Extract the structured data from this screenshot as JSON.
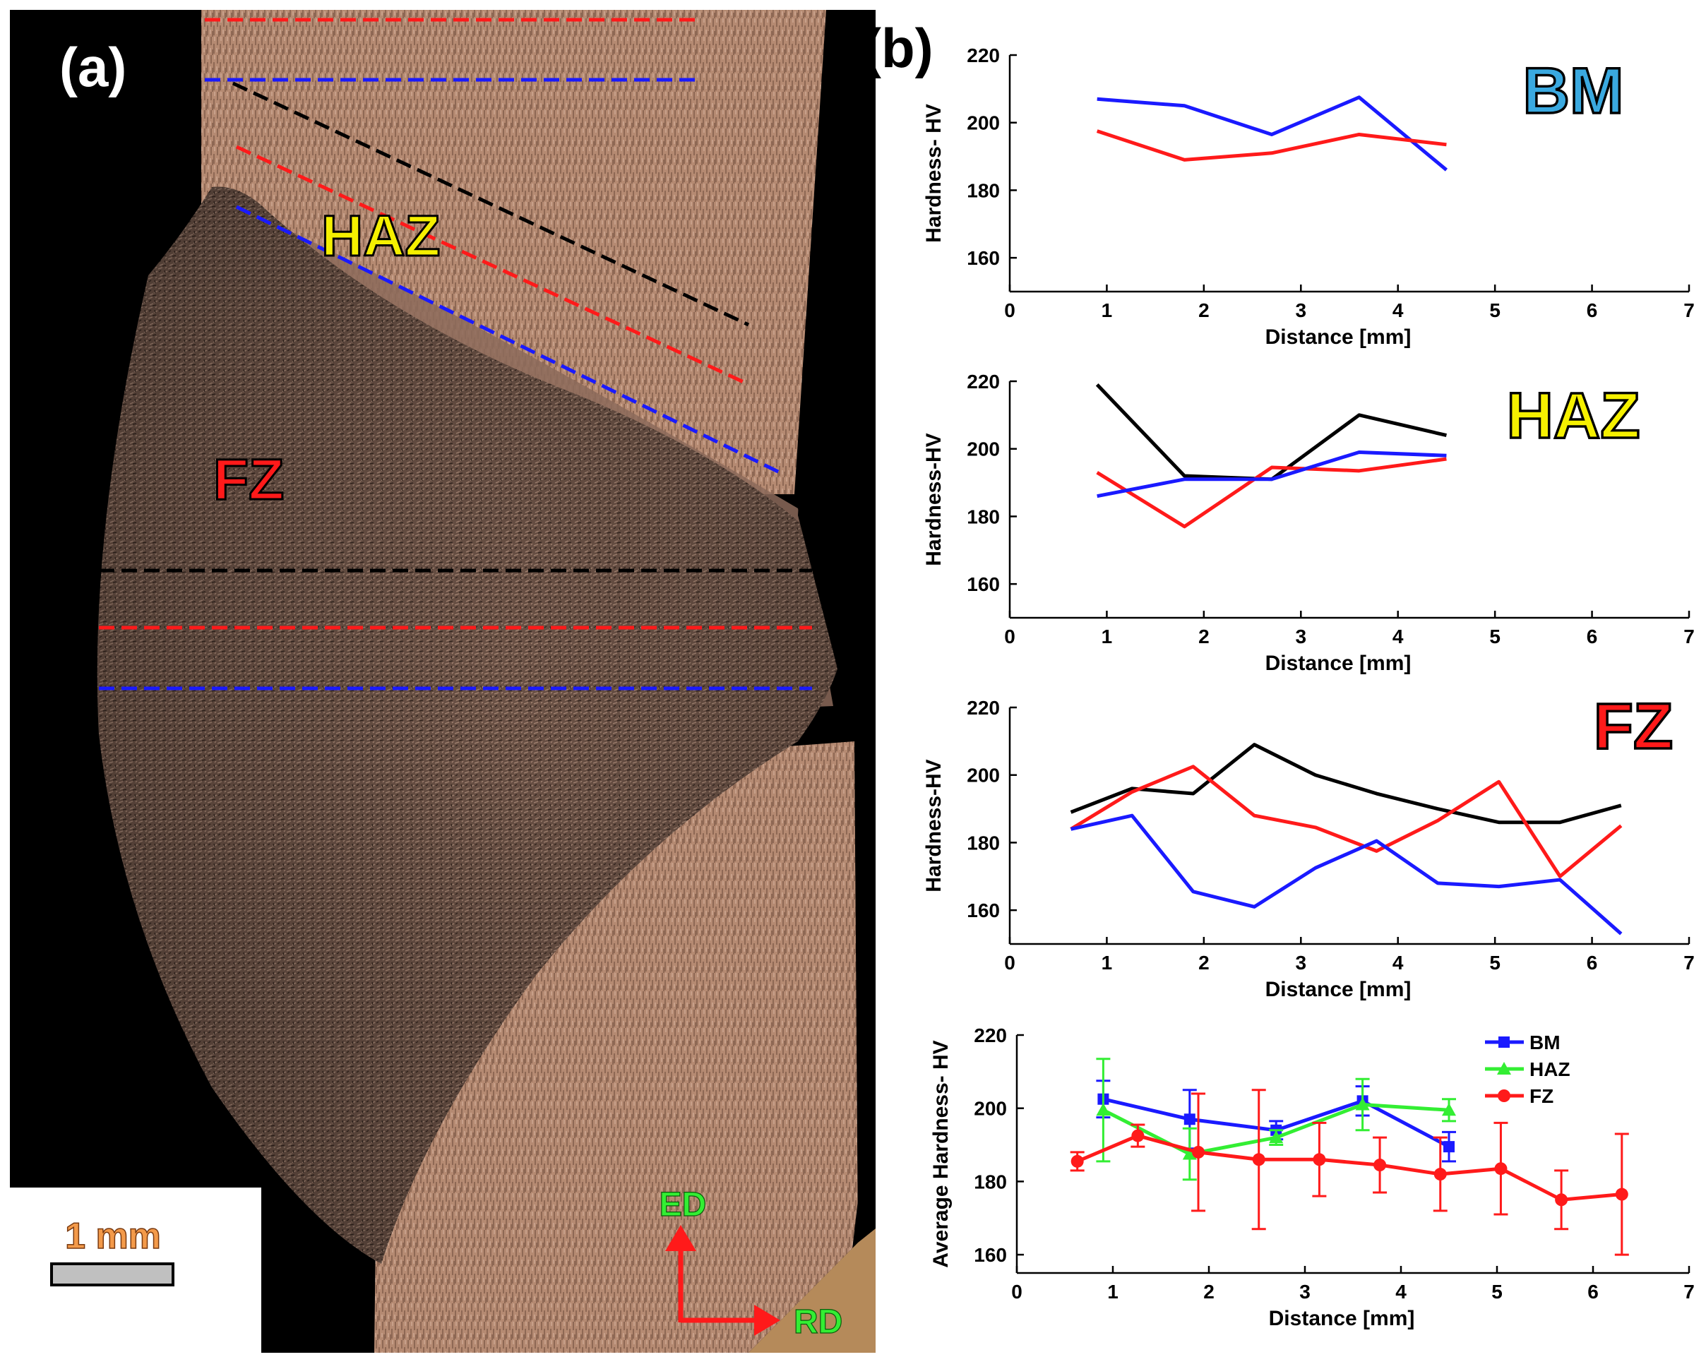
{
  "panel_a": {
    "label": "(a)",
    "zone_labels": {
      "haz": "HAZ",
      "fz": "FZ"
    },
    "scale_bar": {
      "label": "1 mm"
    },
    "axes": {
      "ed": "ED",
      "rd": "RD"
    }
  },
  "panel_b": {
    "label": "(b)"
  },
  "colors": {
    "black": "#000000",
    "red": "#ff1a1a",
    "blue": "#1a1aff",
    "green": "#33ee33",
    "bm_text": "#3aa9e0",
    "haz_text": "#f5f000",
    "fz_text": "#ff1a1a"
  },
  "chart_data": [
    {
      "type": "line",
      "title": "BM",
      "xlabel": "Distance [mm]",
      "ylabel": "Hardness- HV",
      "xlim": [
        0,
        7
      ],
      "ylim": [
        150,
        220
      ],
      "xticks": [
        "0",
        "1",
        "2",
        "3",
        "4",
        "5",
        "6",
        "7"
      ],
      "yticks": [
        "160",
        "180",
        "200",
        "220"
      ],
      "series": [
        {
          "color": "blue",
          "x": [
            0.9,
            1.8,
            2.7,
            3.6,
            4.5
          ],
          "y": [
            207,
            205,
            196.5,
            207.5,
            186
          ]
        },
        {
          "color": "red",
          "x": [
            0.9,
            1.8,
            2.7,
            3.6,
            4.5
          ],
          "y": [
            197.5,
            189,
            191,
            196.5,
            193.5
          ]
        }
      ]
    },
    {
      "type": "line",
      "title": "HAZ",
      "xlabel": "Distance [mm]",
      "ylabel": "Hardness-HV",
      "xlim": [
        0,
        7
      ],
      "ylim": [
        150,
        220
      ],
      "xticks": [
        "0",
        "1",
        "2",
        "3",
        "4",
        "5",
        "6",
        "7"
      ],
      "yticks": [
        "160",
        "180",
        "200",
        "220"
      ],
      "series": [
        {
          "color": "black",
          "x": [
            0.9,
            1.8,
            2.7,
            3.6,
            4.5
          ],
          "y": [
            219,
            192,
            191,
            210,
            204
          ]
        },
        {
          "color": "red",
          "x": [
            0.9,
            1.8,
            2.7,
            3.6,
            4.5
          ],
          "y": [
            193,
            177,
            194.5,
            193.5,
            197
          ]
        },
        {
          "color": "blue",
          "x": [
            0.9,
            1.8,
            2.7,
            3.6,
            4.5
          ],
          "y": [
            186,
            191,
            191,
            199,
            198
          ]
        }
      ]
    },
    {
      "type": "line",
      "title": "FZ",
      "xlabel": "Distance [mm]",
      "ylabel": "Hardness-HV",
      "xlim": [
        0,
        7
      ],
      "ylim": [
        150,
        220
      ],
      "xticks": [
        "0",
        "1",
        "2",
        "3",
        "4",
        "5",
        "6",
        "7"
      ],
      "yticks": [
        "160",
        "180",
        "200",
        "220"
      ],
      "series": [
        {
          "color": "black",
          "x": [
            0.63,
            1.26,
            1.89,
            2.52,
            3.15,
            3.78,
            4.41,
            5.04,
            5.67,
            6.3
          ],
          "y": [
            189,
            196,
            194.5,
            209,
            200,
            194.5,
            190,
            186,
            186,
            191
          ]
        },
        {
          "color": "red",
          "x": [
            0.63,
            1.26,
            1.89,
            2.52,
            3.15,
            3.78,
            4.41,
            5.04,
            5.67,
            6.3
          ],
          "y": [
            184,
            195,
            202.5,
            188,
            184.5,
            177.5,
            186.5,
            198,
            170,
            185
          ]
        },
        {
          "color": "blue",
          "x": [
            0.63,
            1.26,
            1.89,
            2.52,
            3.15,
            3.78,
            4.41,
            5.04,
            5.67,
            6.3
          ],
          "y": [
            184,
            188,
            165.5,
            161,
            172.5,
            180.5,
            168,
            167,
            169,
            153
          ]
        }
      ]
    },
    {
      "type": "line",
      "title": "",
      "xlabel": "Distance [mm]",
      "ylabel": "Average Hardness- HV",
      "xlim": [
        0,
        7
      ],
      "ylim": [
        155,
        220
      ],
      "xticks": [
        "0",
        "1",
        "2",
        "3",
        "4",
        "5",
        "6",
        "7"
      ],
      "yticks": [
        "160",
        "180",
        "200",
        "220"
      ],
      "legend": "top-right",
      "series": [
        {
          "name": "BM",
          "color": "blue",
          "marker": "square",
          "x": [
            0.9,
            1.8,
            2.7,
            3.6,
            4.5
          ],
          "y": [
            202.5,
            197,
            194,
            202,
            189.5
          ],
          "err": [
            5,
            8,
            2.5,
            4,
            4
          ]
        },
        {
          "name": "HAZ",
          "color": "green",
          "marker": "triangle",
          "x": [
            0.9,
            1.8,
            2.7,
            3.6,
            4.5
          ],
          "y": [
            199.5,
            187.5,
            192,
            201,
            199.5
          ],
          "err": [
            14,
            7,
            2,
            7,
            3
          ]
        },
        {
          "name": "FZ",
          "color": "red",
          "marker": "circle",
          "x": [
            0.63,
            1.26,
            1.89,
            2.52,
            3.15,
            3.78,
            4.41,
            5.04,
            5.67,
            6.3
          ],
          "y": [
            185.5,
            192.5,
            188,
            186,
            186,
            184.5,
            182,
            183.5,
            175,
            176.5
          ],
          "err": [
            2.5,
            3,
            16,
            19,
            10,
            7.5,
            10,
            12.5,
            8,
            16.5
          ]
        }
      ]
    }
  ]
}
